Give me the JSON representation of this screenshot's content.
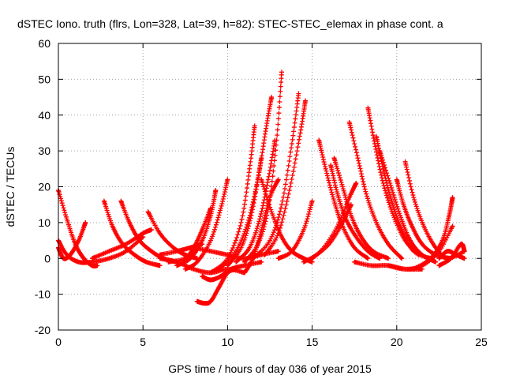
{
  "chart_data": {
    "type": "scatter",
    "title": "dSTEC Iono. truth (flrs, Lon=328, Lat=39, h=82): STEC-STEC_elemax in phase cont. a",
    "xlabel": "GPS time / hours of day 036 of year 2015",
    "ylabel": "dSTEC  / TECUs",
    "xlim": [
      0,
      25
    ],
    "ylim": [
      -20,
      60
    ],
    "x_ticks": [
      0,
      5,
      10,
      15,
      20,
      25
    ],
    "y_ticks": [
      -20,
      -10,
      0,
      10,
      20,
      30,
      40,
      50,
      60
    ],
    "grid": true,
    "marker": "+",
    "color": "#ff0000",
    "series": [
      {
        "x": [
          0.0,
          0.5,
          1.0,
          1.5,
          2.0,
          2.3
        ],
        "y": [
          19,
          11,
          4,
          0,
          -2,
          -2
        ]
      },
      {
        "x": [
          0.0,
          0.3,
          0.7,
          1.2,
          1.6
        ],
        "y": [
          3,
          0,
          1,
          5,
          10
        ]
      },
      {
        "x": [
          0.0,
          0.5,
          1.2,
          2.0,
          3.0,
          4.0,
          5.0
        ],
        "y": [
          5,
          1,
          -1,
          -1,
          0,
          2,
          6
        ]
      },
      {
        "x": [
          2.7,
          3.2,
          3.8,
          4.5,
          5.2,
          6.0
        ],
        "y": [
          16,
          9,
          4,
          1,
          -1,
          -2
        ]
      },
      {
        "x": [
          3.7,
          4.2,
          4.8,
          5.5,
          6.2,
          7.0
        ],
        "y": [
          16,
          10,
          5,
          2,
          0,
          -1
        ]
      },
      {
        "x": [
          2.0,
          3.0,
          4.0,
          5.0,
          5.5
        ],
        "y": [
          0,
          2,
          4,
          7,
          8
        ]
      },
      {
        "x": [
          5.3,
          6.0,
          6.8,
          7.5,
          8.2
        ],
        "y": [
          13,
          7,
          3,
          1,
          0
        ]
      },
      {
        "x": [
          6.0,
          7.0,
          7.8,
          8.5
        ],
        "y": [
          1,
          2,
          3,
          4
        ]
      },
      {
        "x": [
          6.5,
          7.5,
          8.0,
          8.5,
          9.0
        ],
        "y": [
          -1,
          0,
          3,
          8,
          14
        ]
      },
      {
        "x": [
          7.0,
          7.8,
          8.5,
          9.0,
          9.3
        ],
        "y": [
          -2,
          0,
          5,
          12,
          19
        ]
      },
      {
        "x": [
          7.5,
          8.2,
          9.0,
          9.6,
          10.0
        ],
        "y": [
          -3,
          -1,
          5,
          14,
          22
        ]
      },
      {
        "x": [
          8.2,
          8.6,
          9.0,
          9.5,
          10.0,
          10.5
        ],
        "y": [
          -12,
          -12.5,
          -12,
          -8,
          -4,
          -3
        ]
      },
      {
        "x": [
          8.5,
          9.0,
          9.6,
          10.2,
          11.0,
          12.0
        ],
        "y": [
          -5,
          -6,
          -5,
          -3,
          -2,
          -1
        ]
      },
      {
        "x": [
          9.0,
          10.0,
          10.8,
          11.3,
          11.6
        ],
        "y": [
          -4,
          0,
          10,
          25,
          37
        ]
      },
      {
        "x": [
          9.5,
          10.5,
          11.2,
          11.7,
          12.0
        ],
        "y": [
          -3,
          2,
          10,
          20,
          28
        ]
      },
      {
        "x": [
          10.0,
          10.8,
          11.4,
          11.9,
          12.3,
          12.6
        ],
        "y": [
          -2,
          3,
          12,
          25,
          37,
          45
        ]
      },
      {
        "x": [
          10.5,
          11.3,
          11.9,
          12.4,
          12.8
        ],
        "y": [
          -1,
          3,
          11,
          22,
          33
        ]
      },
      {
        "x": [
          11.0,
          11.8,
          12.4,
          12.9,
          13.2
        ],
        "y": [
          -1,
          4,
          14,
          33,
          52
        ]
      },
      {
        "x": [
          11.5,
          12.5,
          13.2,
          13.8,
          14.2
        ],
        "y": [
          0,
          5,
          15,
          32,
          46
        ]
      },
      {
        "x": [
          12.2,
          13.0,
          13.7,
          14.3,
          14.6
        ],
        "y": [
          1,
          7,
          20,
          35,
          44
        ]
      },
      {
        "x": [
          11.0,
          11.5,
          12.0,
          12.5,
          13.0
        ],
        "y": [
          -4,
          0,
          8,
          17,
          22
        ]
      },
      {
        "x": [
          12.0,
          12.6,
          13.2,
          13.8,
          14.5,
          15.0
        ],
        "y": [
          22,
          13,
          6,
          2,
          0,
          -1
        ]
      },
      {
        "x": [
          13.0,
          13.8,
          14.5,
          15.0
        ],
        "y": [
          0,
          2,
          8,
          16
        ]
      },
      {
        "x": [
          15.4,
          15.8,
          16.3,
          16.8,
          17.5,
          18.3
        ],
        "y": [
          33,
          25,
          16,
          9,
          3,
          0
        ]
      },
      {
        "x": [
          16.1,
          16.5,
          17.0,
          17.6,
          18.3,
          19.0
        ],
        "y": [
          26,
          18,
          11,
          6,
          2,
          0
        ]
      },
      {
        "x": [
          16.3,
          16.8,
          17.3,
          17.9,
          18.6,
          19.5
        ],
        "y": [
          28,
          20,
          12,
          6,
          2,
          0
        ]
      },
      {
        "x": [
          17.2,
          17.7,
          18.2,
          18.8,
          19.5,
          20.3
        ],
        "y": [
          38,
          28,
          18,
          10,
          4,
          0
        ]
      },
      {
        "x": [
          18.3,
          18.7,
          19.2,
          19.8,
          20.5,
          21.3
        ],
        "y": [
          42,
          32,
          21,
          12,
          5,
          1
        ]
      },
      {
        "x": [
          18.8,
          19.2,
          19.7,
          20.3,
          21.0,
          22.0
        ],
        "y": [
          34,
          25,
          16,
          8,
          2,
          0
        ]
      },
      {
        "x": [
          19.0,
          19.6,
          20.2,
          20.8,
          21.5,
          22.3
        ],
        "y": [
          30,
          21,
          12,
          5,
          1,
          -1
        ]
      },
      {
        "x": [
          20.0,
          20.4,
          20.9,
          21.5,
          22.3,
          23.2
        ],
        "y": [
          22,
          15,
          9,
          4,
          1,
          0
        ]
      },
      {
        "x": [
          20.5,
          21.0,
          21.6,
          22.3,
          23.0,
          24.0
        ],
        "y": [
          27,
          17,
          9,
          3,
          0,
          2
        ]
      },
      {
        "x": [
          14.5,
          15.5,
          16.5,
          17.2,
          17.6
        ],
        "y": [
          -1,
          2,
          9,
          17,
          21
        ]
      },
      {
        "x": [
          15.0,
          16.0,
          16.8,
          17.3
        ],
        "y": [
          0,
          4,
          10,
          15
        ]
      },
      {
        "x": [
          17.5,
          18.5,
          19.5,
          20.5,
          21.5
        ],
        "y": [
          -1,
          -2,
          -2,
          -3,
          -3
        ]
      },
      {
        "x": [
          19.5,
          20.5,
          21.5,
          22.5,
          23.3
        ],
        "y": [
          -2,
          -3,
          -2,
          2,
          9
        ]
      },
      {
        "x": [
          21.0,
          22.0,
          22.7,
          23.1,
          23.3
        ],
        "y": [
          -3,
          0,
          5,
          12,
          17
        ]
      },
      {
        "x": [
          22.5,
          23.0,
          23.5,
          24.0
        ],
        "y": [
          0,
          2,
          1,
          0
        ]
      },
      {
        "x": [
          22.5,
          23.2,
          23.8,
          24.0
        ],
        "y": [
          -2,
          0,
          4,
          2
        ]
      },
      {
        "x": [
          6.0,
          7.0,
          8.0,
          9.0,
          10.0,
          11.0
        ],
        "y": [
          0,
          -1,
          -3,
          -4,
          -3,
          -4
        ]
      },
      {
        "x": [
          8.0,
          9.0,
          10.0,
          11.0,
          12.0,
          13.0
        ],
        "y": [
          3,
          2,
          1,
          0,
          1,
          2
        ]
      }
    ]
  }
}
